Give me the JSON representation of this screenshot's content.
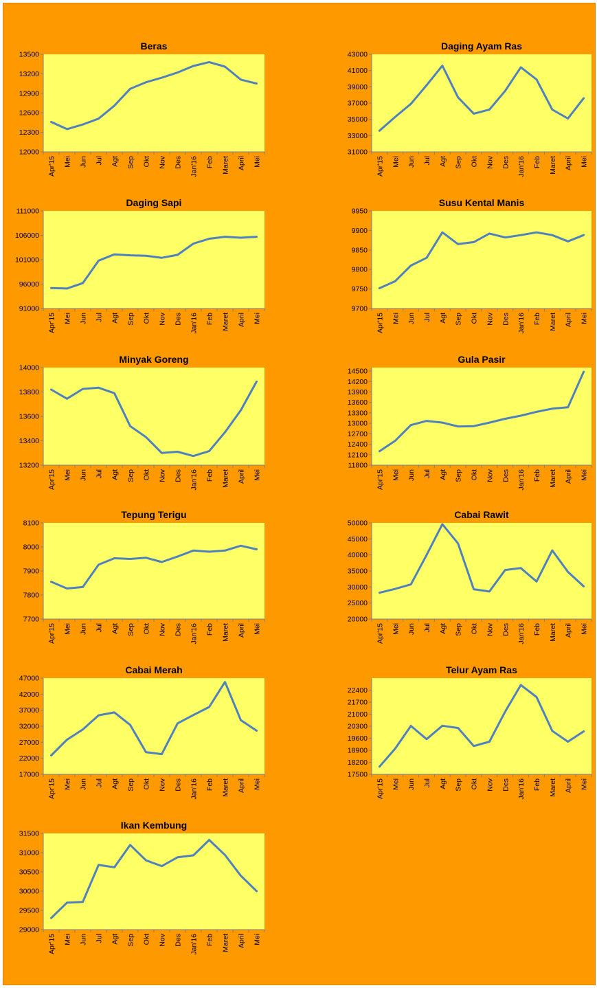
{
  "chart_data": [
    {
      "type": "line",
      "title": "Beras",
      "categories": [
        "Apr'15",
        "Mei",
        "Jun",
        "Jul",
        "Agt",
        "Sep",
        "Okt",
        "Nov",
        "Des",
        "Jan'16",
        "Feb",
        "Maret",
        "April",
        "Mei"
      ],
      "ylim": [
        12000,
        13500
      ],
      "yticks": [
        12000,
        12300,
        12600,
        12900,
        13200,
        13500
      ],
      "series": [
        {
          "values": [
            12460,
            12350,
            12420,
            12510,
            12710,
            12970,
            13070,
            13140,
            13220,
            13320,
            13380,
            13310,
            13110,
            13050
          ]
        }
      ],
      "colors": {
        "plot_bg": "#ffff66",
        "line": "#4f81bd"
      },
      "grid": false
    },
    {
      "type": "line",
      "title": "Daging Ayam Ras",
      "categories": [
        "Apr'15",
        "Mei",
        "Jun",
        "Jul",
        "Agt",
        "Sep",
        "Okt",
        "Nov",
        "Des",
        "Jan'16",
        "Feb",
        "Maret",
        "April",
        "Mei"
      ],
      "ylim": [
        31000,
        43000
      ],
      "yticks": [
        31000,
        33000,
        35000,
        37000,
        39000,
        41000,
        43000
      ],
      "series": [
        {
          "values": [
            33600,
            35300,
            36900,
            39200,
            41600,
            37700,
            35700,
            36200,
            38500,
            41400,
            39900,
            36200,
            35100,
            37600
          ]
        }
      ],
      "colors": {
        "plot_bg": "#ffff66",
        "line": "#4f81bd"
      },
      "grid": false
    },
    {
      "type": "line",
      "title": "Daging Sapi",
      "categories": [
        "Apr'15",
        "Mei",
        "Jun",
        "Jul",
        "Agt",
        "Sep",
        "Okt",
        "Nov",
        "Des",
        "Jan'16",
        "Feb",
        "Maret",
        "April",
        "Mei"
      ],
      "ylim": [
        91000,
        111000
      ],
      "yticks": [
        91000,
        96000,
        101000,
        106000,
        111000
      ],
      "series": [
        {
          "values": [
            95200,
            95100,
            96200,
            100800,
            102100,
            101900,
            101800,
            101400,
            102000,
            104300,
            105300,
            105700,
            105500,
            105700
          ]
        }
      ],
      "colors": {
        "plot_bg": "#ffff66",
        "line": "#4f81bd"
      },
      "grid": false
    },
    {
      "type": "line",
      "title": "Susu Kental Manis",
      "categories": [
        "Apr'15",
        "Mei",
        "Jun",
        "Jul",
        "Agt",
        "Sep",
        "Okt",
        "Nov",
        "Des",
        "Jan'16",
        "Feb",
        "Maret",
        "April",
        "Mei"
      ],
      "ylim": [
        9700,
        9950
      ],
      "yticks": [
        9700,
        9750,
        9800,
        9850,
        9900,
        9950
      ],
      "series": [
        {
          "values": [
            9752,
            9770,
            9810,
            9830,
            9895,
            9865,
            9870,
            9892,
            9882,
            9888,
            9895,
            9888,
            9872,
            9888
          ]
        }
      ],
      "colors": {
        "plot_bg": "#ffff66",
        "line": "#4f81bd"
      },
      "grid": false
    },
    {
      "type": "line",
      "title": "Minyak Goreng",
      "categories": [
        "Apr'15",
        "Mei",
        "Jun",
        "Jul",
        "Agt",
        "Sep",
        "Okt",
        "Nov",
        "Des",
        "Jan'16",
        "Feb",
        "Maret",
        "April",
        "Mei"
      ],
      "ylim": [
        13200,
        14000
      ],
      "yticks": [
        13200,
        13400,
        13600,
        13800,
        14000
      ],
      "series": [
        {
          "values": [
            13820,
            13745,
            13825,
            13835,
            13790,
            13520,
            13430,
            13300,
            13310,
            13275,
            13315,
            13470,
            13650,
            13885
          ]
        }
      ],
      "colors": {
        "plot_bg": "#ffff66",
        "line": "#4f81bd"
      },
      "grid": false
    },
    {
      "type": "line",
      "title": "Gula Pasir",
      "categories": [
        "Apr'15",
        "Mei",
        "Jun",
        "Jul",
        "Agt",
        "Sep",
        "Okt",
        "Nov",
        "Des",
        "Jan'16",
        "Feb",
        "Maret",
        "April",
        "Mei"
      ],
      "ylim": [
        11800,
        14600
      ],
      "yticks": [
        11800,
        12100,
        12400,
        12700,
        13000,
        13300,
        13600,
        13900,
        14200,
        14500
      ],
      "series": [
        {
          "values": [
            12200,
            12500,
            12950,
            13070,
            13020,
            12910,
            12920,
            13020,
            13130,
            13220,
            13330,
            13420,
            13460,
            14480
          ]
        }
      ],
      "colors": {
        "plot_bg": "#ffff66",
        "line": "#4f81bd"
      },
      "grid": false
    },
    {
      "type": "line",
      "title": "Tepung Terigu",
      "categories": [
        "Apr'15",
        "Mei",
        "Jun",
        "Jul",
        "Agt",
        "Sep",
        "Okt",
        "Nov",
        "Des",
        "Jan'16",
        "Feb",
        "Maret",
        "April",
        "Mei"
      ],
      "ylim": [
        7700,
        8100
      ],
      "yticks": [
        7700,
        7800,
        7900,
        8000,
        8100
      ],
      "series": [
        {
          "values": [
            7855,
            7827,
            7833,
            7926,
            7953,
            7950,
            7955,
            7937,
            7960,
            7985,
            7980,
            7985,
            8005,
            7990
          ]
        }
      ],
      "colors": {
        "plot_bg": "#ffff66",
        "line": "#4f81bd"
      },
      "grid": false
    },
    {
      "type": "line",
      "title": "Cabai Rawit",
      "categories": [
        "Apr'15",
        "Mei",
        "Jun",
        "Jul",
        "Agt",
        "Sep",
        "Okt",
        "Nov",
        "Des",
        "Jan'16",
        "Feb",
        "Maret",
        "April",
        "Mei"
      ],
      "ylim": [
        20000,
        50000
      ],
      "yticks": [
        20000,
        25000,
        30000,
        35000,
        40000,
        45000,
        50000
      ],
      "series": [
        {
          "values": [
            28200,
            29400,
            30800,
            40000,
            49600,
            43600,
            29300,
            28600,
            35300,
            35900,
            31700,
            41400,
            34700,
            30200
          ]
        }
      ],
      "colors": {
        "plot_bg": "#ffff66",
        "line": "#4f81bd"
      },
      "grid": false
    },
    {
      "type": "line",
      "title": "Cabai Merah",
      "categories": [
        "Apr'15",
        "Mei",
        "Jun",
        "Jul",
        "Agt",
        "Sep",
        "Okt",
        "Nov",
        "Des",
        "Jan'16",
        "Feb",
        "Maret",
        "April",
        "Mei"
      ],
      "ylim": [
        17000,
        47000
      ],
      "yticks": [
        17000,
        22000,
        27000,
        32000,
        37000,
        42000,
        47000
      ],
      "series": [
        {
          "values": [
            22900,
            27800,
            31000,
            35400,
            36300,
            32400,
            23900,
            23300,
            32900,
            35500,
            38000,
            45800,
            33900,
            30600
          ]
        }
      ],
      "colors": {
        "plot_bg": "#ffff66",
        "line": "#4f81bd"
      },
      "grid": false
    },
    {
      "type": "line",
      "title": "Telur Ayam Ras",
      "categories": [
        "Apr'15",
        "Mei",
        "Jun",
        "Jul",
        "Agt",
        "Sep",
        "Okt",
        "Nov",
        "Des",
        "Jan'16",
        "Feb",
        "Maret",
        "April",
        "Mei"
      ],
      "ylim": [
        17500,
        23100
      ],
      "yticks": [
        17500,
        18200,
        18900,
        19600,
        20300,
        21000,
        21700,
        22400
      ],
      "series": [
        {
          "values": [
            17950,
            19000,
            20320,
            19550,
            20330,
            20200,
            19150,
            19400,
            21150,
            22700,
            22000,
            20030,
            19400,
            20000
          ]
        }
      ],
      "colors": {
        "plot_bg": "#ffff66",
        "line": "#4f81bd"
      },
      "grid": false
    },
    {
      "type": "line",
      "title": "Ikan Kembung",
      "categories": [
        "Apr'15",
        "Mei",
        "Jun",
        "Jul",
        "Agt",
        "Sep",
        "Okt",
        "Nov",
        "Des",
        "Jan'16",
        "Feb",
        "Maret",
        "April",
        "Mei"
      ],
      "ylim": [
        29000,
        31500
      ],
      "yticks": [
        29000,
        29500,
        30000,
        30500,
        31000,
        31500
      ],
      "series": [
        {
          "values": [
            29300,
            29700,
            29720,
            30680,
            30620,
            31200,
            30800,
            30650,
            30880,
            30930,
            31330,
            30940,
            30400,
            30000
          ]
        }
      ],
      "colors": {
        "plot_bg": "#ffff66",
        "line": "#4f81bd"
      },
      "grid": false
    }
  ]
}
